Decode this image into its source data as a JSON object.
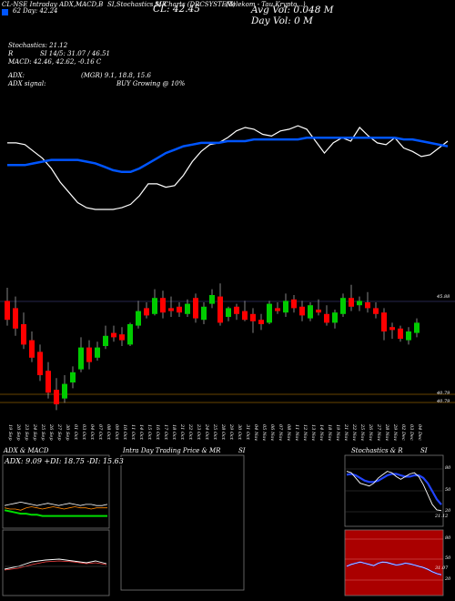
{
  "header": {
    "line1": [
      "CL-NSE Intraday ADX,MACD,B",
      "SI,Stochastics,MR",
      "SI Charts (DRCSYSTEM)",
      "(Telekom - Tau Krypto...)"
    ],
    "ohlc": "62 Day:  42.24",
    "cl": "CL: 42.45",
    "avg_vol": "Avg Vol: 0.048 M",
    "day_vol": "Day Vol: 0  M",
    "stochastics": "Stochastics: 21.12",
    "rsi": "SI 14/5: 31.07 / 46.51",
    "rsi_prefix": "R",
    "macd": "MACD: 42.46, 42.62, -0.16  C",
    "adx": "ADX:",
    "adx_mgr": "(MGR) 9.1, 18.8, 15.6",
    "adx_signal": "ADX  signal:",
    "buy_signal": "BUY Growing @ 10%"
  },
  "colors": {
    "up": "#00cc00",
    "down": "#ff0000",
    "ma": "#0055ff",
    "price_line": "#ffffff",
    "adx_green": "#00dd00",
    "orange": "#ff8800",
    "stoch_blue": "#2244ff",
    "rsi_bg": "#aa0000"
  },
  "price_labels": [
    "45.88",
    "40.79",
    "40.79"
  ],
  "date_labels": [
    "19 Sep",
    "20 Sep",
    "23 Sep",
    "24 Sep",
    "25 Sep",
    "26 Sep",
    "27 Sep",
    "30 Sep",
    "01 Oct",
    "03 Oct",
    "04 Oct",
    "07 Oct",
    "08 Oct",
    "09 Oct",
    "10 Oct",
    "11 Oct",
    "14 Oct",
    "15 Oct",
    "16 Oct",
    "17 Oct",
    "18 Oct",
    "21 Oct",
    "22 Oct",
    "23 Oct",
    "24 Oct",
    "25 Oct",
    "28 Oct",
    "29 Oct",
    "30 Oct",
    "31 Oct",
    "04 Nov",
    "05 Nov",
    "06 Nov",
    "07 Nov",
    "08 Nov",
    "11 Nov",
    "12 Nov",
    "13 Nov",
    "14 Nov",
    "18 Nov",
    "19 Nov",
    "21 Nov",
    "22 Nov",
    "25 Nov",
    "26 Nov",
    "27 Nov",
    "28 Nov",
    "29 Nov",
    "02 Dec",
    "03 Dec",
    "04 Dec"
  ],
  "panels": {
    "adx_title": "ADX  & MACD",
    "adx_readout": "ADX: 9.09 +DI: 18.75 -DI: 15.63",
    "mrsi_title": "Intra  Day Trading Price  & MR",
    "mrsi_title2": "SI",
    "stoch_title": "Stochastics & R",
    "stoch_title2": "SI",
    "stoch_ticks": [
      "80",
      "50",
      "20"
    ],
    "stoch_readout": "21.12",
    "rsi_ticks": [
      "80",
      "50",
      "20"
    ],
    "rsi_readout": "31.07"
  },
  "chart_data": {
    "type": "candlestick",
    "categories": [
      "19 Sep",
      "20 Sep",
      "23 Sep",
      "24 Sep",
      "25 Sep",
      "26 Sep",
      "27 Sep",
      "30 Sep",
      "01 Oct",
      "03 Oct",
      "04 Oct",
      "07 Oct",
      "08 Oct",
      "09 Oct",
      "10 Oct",
      "11 Oct",
      "14 Oct",
      "15 Oct",
      "16 Oct",
      "17 Oct",
      "18 Oct",
      "21 Oct",
      "22 Oct",
      "23 Oct",
      "24 Oct",
      "25 Oct",
      "28 Oct",
      "29 Oct",
      "30 Oct",
      "31 Oct",
      "04 Nov",
      "05 Nov",
      "06 Nov",
      "07 Nov",
      "08 Nov",
      "11 Nov",
      "12 Nov",
      "13 Nov",
      "14 Nov",
      "18 Nov",
      "19 Nov",
      "21 Nov",
      "22 Nov",
      "25 Nov",
      "26 Nov",
      "27 Nov",
      "28 Nov",
      "29 Nov",
      "02 Dec",
      "03 Dec",
      "04 Dec"
    ],
    "candles": [
      {
        "o": 46.1,
        "h": 47.0,
        "l": 44.4,
        "c": 44.8
      },
      {
        "o": 45.6,
        "h": 46.4,
        "l": 43.7,
        "c": 44.2
      },
      {
        "o": 44.5,
        "h": 45.3,
        "l": 42.8,
        "c": 43.1
      },
      {
        "o": 43.4,
        "h": 44.0,
        "l": 41.9,
        "c": 42.2
      },
      {
        "o": 42.6,
        "h": 43.1,
        "l": 40.6,
        "c": 41.0
      },
      {
        "o": 41.3,
        "h": 41.9,
        "l": 39.4,
        "c": 39.8
      },
      {
        "o": 40.0,
        "h": 40.8,
        "l": 38.6,
        "c": 39.0
      },
      {
        "o": 39.4,
        "h": 41.0,
        "l": 39.1,
        "c": 40.4
      },
      {
        "o": 40.5,
        "h": 41.6,
        "l": 40.1,
        "c": 41.2
      },
      {
        "o": 41.4,
        "h": 43.6,
        "l": 41.2,
        "c": 42.9
      },
      {
        "o": 42.9,
        "h": 43.4,
        "l": 41.4,
        "c": 41.9
      },
      {
        "o": 42.2,
        "h": 43.3,
        "l": 42.0,
        "c": 42.9
      },
      {
        "o": 43.0,
        "h": 44.4,
        "l": 42.8,
        "c": 43.7
      },
      {
        "o": 43.9,
        "h": 44.4,
        "l": 43.3,
        "c": 43.6
      },
      {
        "o": 43.8,
        "h": 44.3,
        "l": 43.0,
        "c": 43.4
      },
      {
        "o": 43.1,
        "h": 44.6,
        "l": 43.0,
        "c": 44.5
      },
      {
        "o": 44.4,
        "h": 46.1,
        "l": 44.2,
        "c": 45.4
      },
      {
        "o": 45.6,
        "h": 46.0,
        "l": 44.9,
        "c": 45.1
      },
      {
        "o": 45.2,
        "h": 46.9,
        "l": 45.1,
        "c": 46.3
      },
      {
        "o": 46.3,
        "h": 46.8,
        "l": 44.9,
        "c": 45.3
      },
      {
        "o": 45.6,
        "h": 46.4,
        "l": 45.0,
        "c": 45.4
      },
      {
        "o": 45.7,
        "h": 46.0,
        "l": 45.0,
        "c": 45.3
      },
      {
        "o": 45.2,
        "h": 46.2,
        "l": 45.0,
        "c": 45.9
      },
      {
        "o": 46.3,
        "h": 46.6,
        "l": 44.6,
        "c": 44.9
      },
      {
        "o": 44.8,
        "h": 46.0,
        "l": 44.5,
        "c": 45.7
      },
      {
        "o": 45.9,
        "h": 46.9,
        "l": 45.6,
        "c": 46.5
      },
      {
        "o": 46.4,
        "h": 47.3,
        "l": 44.4,
        "c": 44.6
      },
      {
        "o": 45.0,
        "h": 45.7,
        "l": 44.7,
        "c": 45.6
      },
      {
        "o": 45.7,
        "h": 45.9,
        "l": 44.8,
        "c": 45.2
      },
      {
        "o": 45.4,
        "h": 46.1,
        "l": 44.7,
        "c": 44.8
      },
      {
        "o": 45.2,
        "h": 45.6,
        "l": 43.9,
        "c": 44.7
      },
      {
        "o": 44.8,
        "h": 45.2,
        "l": 44.1,
        "c": 44.5
      },
      {
        "o": 44.6,
        "h": 46.1,
        "l": 44.5,
        "c": 45.9
      },
      {
        "o": 45.6,
        "h": 46.0,
        "l": 45.2,
        "c": 45.4
      },
      {
        "o": 45.3,
        "h": 46.6,
        "l": 45.0,
        "c": 46.1
      },
      {
        "o": 46.2,
        "h": 46.5,
        "l": 45.3,
        "c": 45.6
      },
      {
        "o": 45.7,
        "h": 46.1,
        "l": 44.7,
        "c": 45.1
      },
      {
        "o": 44.9,
        "h": 46.0,
        "l": 44.7,
        "c": 45.8
      },
      {
        "o": 45.5,
        "h": 46.2,
        "l": 45.1,
        "c": 45.3
      },
      {
        "o": 45.2,
        "h": 45.8,
        "l": 44.4,
        "c": 44.6
      },
      {
        "o": 44.6,
        "h": 45.5,
        "l": 44.2,
        "c": 45.3
      },
      {
        "o": 45.2,
        "h": 46.6,
        "l": 45.0,
        "c": 46.3
      },
      {
        "o": 46.3,
        "h": 47.2,
        "l": 45.4,
        "c": 45.7
      },
      {
        "o": 45.8,
        "h": 46.4,
        "l": 45.4,
        "c": 46.1
      },
      {
        "o": 46.0,
        "h": 46.7,
        "l": 45.3,
        "c": 45.6
      },
      {
        "o": 45.6,
        "h": 46.0,
        "l": 44.9,
        "c": 45.2
      },
      {
        "o": 45.3,
        "h": 45.6,
        "l": 43.4,
        "c": 44.0
      },
      {
        "o": 44.3,
        "h": 44.6,
        "l": 43.5,
        "c": 44.1
      },
      {
        "o": 44.2,
        "h": 44.4,
        "l": 43.3,
        "c": 43.5
      },
      {
        "o": 43.4,
        "h": 44.3,
        "l": 43.1,
        "c": 44.0
      },
      {
        "o": 43.9,
        "h": 44.9,
        "l": 43.6,
        "c": 44.6
      }
    ],
    "ylim": [
      38.0,
      48.0
    ],
    "hlines": [
      45.88,
      40.79,
      40.79
    ],
    "overview": {
      "price_line": [
        55,
        55,
        54,
        50,
        46,
        40,
        32,
        26,
        20,
        17,
        16,
        16,
        16,
        17,
        19,
        24,
        31,
        31,
        29,
        30,
        36,
        44,
        50,
        54,
        55,
        58,
        62,
        64,
        63,
        60,
        59,
        62,
        63,
        65,
        63,
        56,
        49,
        55,
        58,
        56,
        64,
        59,
        55,
        54,
        58,
        52,
        50,
        47,
        48,
        52,
        56
      ],
      "ma_line": [
        42,
        42,
        42,
        43,
        44,
        45,
        45,
        45,
        45,
        44,
        43,
        41,
        39,
        38,
        38,
        40,
        43,
        46,
        49,
        51,
        53,
        54,
        55,
        55,
        55,
        56,
        56,
        56,
        57,
        57,
        57,
        57,
        57,
        57,
        58,
        58,
        58,
        58,
        58,
        58,
        58,
        58,
        58,
        58,
        58,
        57,
        57,
        56,
        55,
        54,
        53
      ],
      "ylim": [
        0,
        80
      ]
    },
    "adx_panel": {
      "adx": [
        14,
        13,
        12,
        11,
        11,
        10,
        10,
        9,
        9,
        9,
        9,
        9,
        9,
        9,
        9,
        9,
        9,
        9,
        9,
        9
      ],
      "plus_di": [
        18,
        19,
        20,
        21,
        20,
        19,
        18,
        19,
        20,
        19,
        18,
        19,
        20,
        19,
        18,
        19,
        19,
        18,
        18,
        19
      ],
      "minus_di": [
        16,
        15,
        15,
        14,
        16,
        17,
        16,
        15,
        16,
        17,
        16,
        15,
        16,
        17,
        16,
        16,
        15,
        16,
        16,
        16
      ]
    },
    "stoch_panel": {
      "stoch": [
        80,
        78,
        70,
        62,
        60,
        58,
        62,
        70,
        75,
        80,
        78,
        72,
        68,
        72,
        76,
        78,
        72,
        60,
        45,
        30,
        22,
        21
      ],
      "stoch_smooth": [
        75,
        76,
        74,
        70,
        66,
        64,
        64,
        66,
        70,
        74,
        76,
        76,
        74,
        72,
        72,
        74,
        74,
        70,
        62,
        50,
        38,
        30
      ],
      "ylim": [
        0,
        100
      ]
    },
    "rsi_panel": {
      "rsi": [
        45,
        48,
        50,
        52,
        50,
        48,
        46,
        50,
        52,
        51,
        49,
        47,
        48,
        50,
        49,
        47,
        45,
        43,
        40,
        36,
        33,
        31
      ],
      "ylim": [
        0,
        100
      ]
    }
  }
}
